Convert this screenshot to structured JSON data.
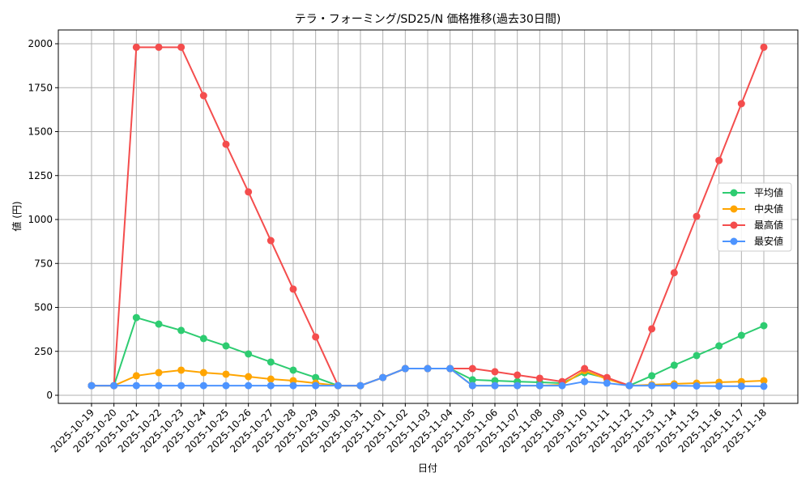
{
  "chart_data": {
    "type": "line",
    "title": "テラ・フォーミング/SD25/N 価格推移(過去30日間)",
    "xlabel": "日付",
    "ylabel": "値 (円)",
    "ylim": [
      -50,
      2070
    ],
    "yticks": [
      0,
      250,
      500,
      750,
      1000,
      1250,
      1500,
      1750,
      2000
    ],
    "grid": true,
    "legend_position": "center right",
    "x": [
      "2025-10-19",
      "2025-10-20",
      "2025-10-21",
      "2025-10-22",
      "2025-10-23",
      "2025-10-24",
      "2025-10-25",
      "2025-10-26",
      "2025-10-27",
      "2025-10-28",
      "2025-10-29",
      "2025-10-30",
      "2025-10-31",
      "2025-11-01",
      "2025-11-02",
      "2025-11-03",
      "2025-11-04",
      "2025-11-05",
      "2025-11-06",
      "2025-11-07",
      "2025-11-08",
      "2025-11-09",
      "2025-11-10",
      "2025-11-11",
      "2025-11-12",
      "2025-11-13",
      "2025-11-14",
      "2025-11-15",
      "2025-11-16",
      "2025-11-17",
      "2025-11-18"
    ],
    "series": [
      {
        "name": "平均値",
        "color": "#2ecc71",
        "values": [
          55,
          55,
          442,
          405,
          369,
          323,
          281,
          235,
          189,
          143,
          101,
          55,
          55,
          101,
          152,
          152,
          152,
          88,
          83,
          78,
          74,
          69,
          129,
          97,
          55,
          111,
          171,
          226,
          281,
          341,
          396
        ]
      },
      {
        "name": "中央値",
        "color": "#ffa500",
        "values": [
          55,
          55,
          111,
          129,
          143,
          129,
          120,
          106,
          92,
          83,
          69,
          55,
          55,
          101,
          152,
          152,
          152,
          55,
          55,
          55,
          55,
          60,
          140,
          92,
          55,
          60,
          65,
          69,
          74,
          78,
          83
        ]
      },
      {
        "name": "最高値",
        "color": "#f44d4d",
        "values": [
          55,
          55,
          1980,
          1980,
          1980,
          1705,
          1428,
          1157,
          880,
          604,
          332,
          55,
          55,
          101,
          152,
          152,
          152,
          152,
          134,
          115,
          97,
          78,
          152,
          101,
          55,
          378,
          697,
          1018,
          1336,
          1659,
          1980
        ]
      },
      {
        "name": "最安値",
        "color": "#4d94ff",
        "values": [
          55,
          55,
          55,
          55,
          55,
          55,
          55,
          55,
          55,
          55,
          55,
          55,
          55,
          101,
          152,
          152,
          152,
          55,
          55,
          55,
          55,
          55,
          78,
          69,
          55,
          55,
          55,
          53,
          52,
          52,
          51
        ]
      }
    ]
  }
}
